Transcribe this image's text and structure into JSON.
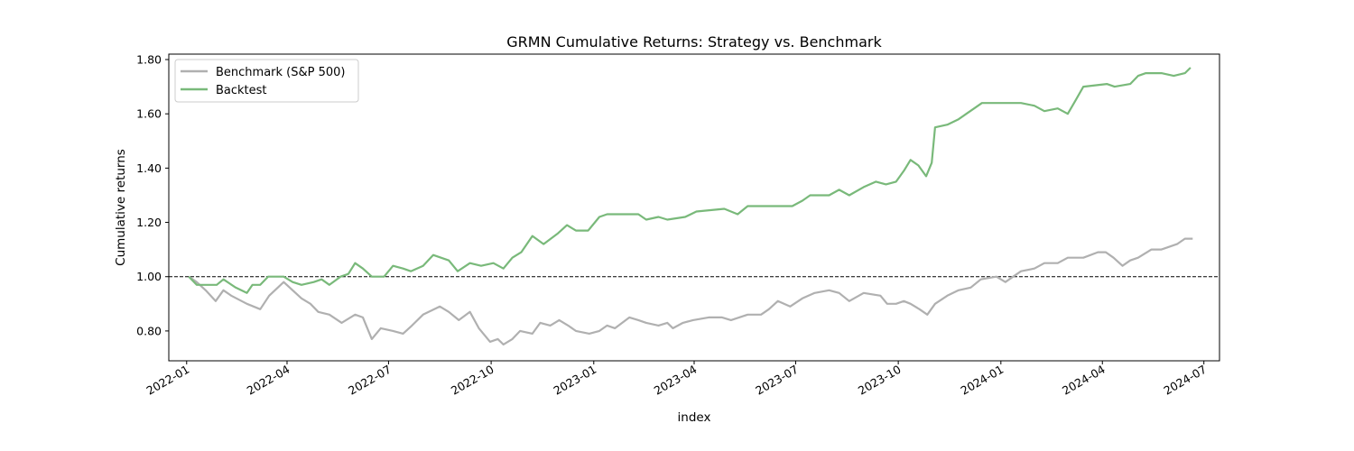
{
  "chart_data": {
    "type": "line",
    "title": "GRMN Cumulative Returns: Strategy vs. Benchmark",
    "xlabel": "index",
    "ylabel": "Cumulative returns",
    "xlim": [
      "2021-12-16",
      "2024-07-15"
    ],
    "ylim": [
      0.69,
      1.82
    ],
    "x_ticks": [
      "2022-01",
      "2022-04",
      "2022-07",
      "2022-10",
      "2023-01",
      "2023-04",
      "2023-07",
      "2023-10",
      "2024-01",
      "2024-04",
      "2024-07"
    ],
    "y_ticks": [
      0.8,
      1.0,
      1.2,
      1.4,
      1.6,
      1.8
    ],
    "y_tick_labels": [
      "0.80",
      "1.00",
      "1.20",
      "1.40",
      "1.60",
      "1.80"
    ],
    "reference_line": 1.0,
    "grid": false,
    "legend": "top-left",
    "series": [
      {
        "name": "Benchmark (S&P 500)",
        "color": "#b0b0b0",
        "points": [
          [
            "2022-01-03",
            1.0
          ],
          [
            "2022-01-10",
            0.98
          ],
          [
            "2022-01-18",
            0.95
          ],
          [
            "2022-01-27",
            0.91
          ],
          [
            "2022-02-03",
            0.95
          ],
          [
            "2022-02-10",
            0.93
          ],
          [
            "2022-02-24",
            0.9
          ],
          [
            "2022-03-08",
            0.88
          ],
          [
            "2022-03-16",
            0.93
          ],
          [
            "2022-03-29",
            0.98
          ],
          [
            "2022-04-06",
            0.95
          ],
          [
            "2022-04-14",
            0.92
          ],
          [
            "2022-04-22",
            0.9
          ],
          [
            "2022-04-29",
            0.87
          ],
          [
            "2022-05-09",
            0.86
          ],
          [
            "2022-05-20",
            0.83
          ],
          [
            "2022-06-01",
            0.86
          ],
          [
            "2022-06-08",
            0.85
          ],
          [
            "2022-06-16",
            0.77
          ],
          [
            "2022-06-24",
            0.81
          ],
          [
            "2022-07-05",
            0.8
          ],
          [
            "2022-07-14",
            0.79
          ],
          [
            "2022-07-22",
            0.82
          ],
          [
            "2022-08-01",
            0.86
          ],
          [
            "2022-08-16",
            0.89
          ],
          [
            "2022-08-24",
            0.87
          ],
          [
            "2022-09-02",
            0.84
          ],
          [
            "2022-09-12",
            0.87
          ],
          [
            "2022-09-20",
            0.81
          ],
          [
            "2022-09-30",
            0.76
          ],
          [
            "2022-10-07",
            0.77
          ],
          [
            "2022-10-12",
            0.75
          ],
          [
            "2022-10-20",
            0.77
          ],
          [
            "2022-10-27",
            0.8
          ],
          [
            "2022-11-07",
            0.79
          ],
          [
            "2022-11-14",
            0.83
          ],
          [
            "2022-11-23",
            0.82
          ],
          [
            "2022-12-01",
            0.84
          ],
          [
            "2022-12-09",
            0.82
          ],
          [
            "2022-12-16",
            0.8
          ],
          [
            "2022-12-28",
            0.79
          ],
          [
            "2023-01-06",
            0.8
          ],
          [
            "2023-01-13",
            0.82
          ],
          [
            "2023-01-20",
            0.81
          ],
          [
            "2023-02-02",
            0.85
          ],
          [
            "2023-02-10",
            0.84
          ],
          [
            "2023-02-17",
            0.83
          ],
          [
            "2023-02-28",
            0.82
          ],
          [
            "2023-03-08",
            0.83
          ],
          [
            "2023-03-13",
            0.81
          ],
          [
            "2023-03-22",
            0.83
          ],
          [
            "2023-03-31",
            0.84
          ],
          [
            "2023-04-14",
            0.85
          ],
          [
            "2023-04-26",
            0.85
          ],
          [
            "2023-05-04",
            0.84
          ],
          [
            "2023-05-19",
            0.86
          ],
          [
            "2023-05-31",
            0.86
          ],
          [
            "2023-06-07",
            0.88
          ],
          [
            "2023-06-15",
            0.91
          ],
          [
            "2023-06-26",
            0.89
          ],
          [
            "2023-07-07",
            0.92
          ],
          [
            "2023-07-18",
            0.94
          ],
          [
            "2023-07-31",
            0.95
          ],
          [
            "2023-08-09",
            0.94
          ],
          [
            "2023-08-18",
            0.91
          ],
          [
            "2023-08-31",
            0.94
          ],
          [
            "2023-09-15",
            0.93
          ],
          [
            "2023-09-21",
            0.9
          ],
          [
            "2023-09-29",
            0.9
          ],
          [
            "2023-10-06",
            0.91
          ],
          [
            "2023-10-12",
            0.9
          ],
          [
            "2023-10-20",
            0.88
          ],
          [
            "2023-10-27",
            0.86
          ],
          [
            "2023-11-03",
            0.9
          ],
          [
            "2023-11-14",
            0.93
          ],
          [
            "2023-11-24",
            0.95
          ],
          [
            "2023-12-05",
            0.96
          ],
          [
            "2023-12-14",
            0.99
          ],
          [
            "2023-12-28",
            1.0
          ],
          [
            "2024-01-05",
            0.98
          ],
          [
            "2024-01-12",
            1.0
          ],
          [
            "2024-01-19",
            1.02
          ],
          [
            "2024-01-31",
            1.03
          ],
          [
            "2024-02-09",
            1.05
          ],
          [
            "2024-02-21",
            1.05
          ],
          [
            "2024-03-01",
            1.07
          ],
          [
            "2024-03-15",
            1.07
          ],
          [
            "2024-03-28",
            1.09
          ],
          [
            "2024-04-04",
            1.09
          ],
          [
            "2024-04-11",
            1.07
          ],
          [
            "2024-04-19",
            1.04
          ],
          [
            "2024-04-26",
            1.06
          ],
          [
            "2024-05-03",
            1.07
          ],
          [
            "2024-05-15",
            1.1
          ],
          [
            "2024-05-24",
            1.1
          ],
          [
            "2024-05-31",
            1.11
          ],
          [
            "2024-06-07",
            1.12
          ],
          [
            "2024-06-14",
            1.14
          ],
          [
            "2024-06-21",
            1.14
          ]
        ]
      },
      {
        "name": "Backtest",
        "color": "#79b97a",
        "points": [
          [
            "2022-01-03",
            1.0
          ],
          [
            "2022-01-10",
            0.97
          ],
          [
            "2022-01-20",
            0.97
          ],
          [
            "2022-01-28",
            0.97
          ],
          [
            "2022-02-03",
            0.99
          ],
          [
            "2022-02-14",
            0.96
          ],
          [
            "2022-02-24",
            0.94
          ],
          [
            "2022-03-01",
            0.97
          ],
          [
            "2022-03-08",
            0.97
          ],
          [
            "2022-03-15",
            1.0
          ],
          [
            "2022-03-29",
            1.0
          ],
          [
            "2022-04-06",
            0.98
          ],
          [
            "2022-04-14",
            0.97
          ],
          [
            "2022-04-25",
            0.98
          ],
          [
            "2022-05-02",
            0.99
          ],
          [
            "2022-05-09",
            0.97
          ],
          [
            "2022-05-19",
            1.0
          ],
          [
            "2022-05-26",
            1.01
          ],
          [
            "2022-06-01",
            1.05
          ],
          [
            "2022-06-08",
            1.03
          ],
          [
            "2022-06-16",
            1.0
          ],
          [
            "2022-06-27",
            1.0
          ],
          [
            "2022-07-05",
            1.04
          ],
          [
            "2022-07-14",
            1.03
          ],
          [
            "2022-07-21",
            1.02
          ],
          [
            "2022-08-01",
            1.04
          ],
          [
            "2022-08-10",
            1.08
          ],
          [
            "2022-08-24",
            1.06
          ],
          [
            "2022-09-01",
            1.02
          ],
          [
            "2022-09-12",
            1.05
          ],
          [
            "2022-09-22",
            1.04
          ],
          [
            "2022-10-03",
            1.05
          ],
          [
            "2022-10-12",
            1.03
          ],
          [
            "2022-10-20",
            1.07
          ],
          [
            "2022-10-28",
            1.09
          ],
          [
            "2022-11-07",
            1.15
          ],
          [
            "2022-11-17",
            1.12
          ],
          [
            "2022-11-30",
            1.16
          ],
          [
            "2022-12-08",
            1.19
          ],
          [
            "2022-12-16",
            1.17
          ],
          [
            "2022-12-27",
            1.17
          ],
          [
            "2023-01-06",
            1.22
          ],
          [
            "2023-01-13",
            1.23
          ],
          [
            "2023-01-31",
            1.23
          ],
          [
            "2023-02-10",
            1.23
          ],
          [
            "2023-02-17",
            1.21
          ],
          [
            "2023-02-28",
            1.22
          ],
          [
            "2023-03-08",
            1.21
          ],
          [
            "2023-03-24",
            1.22
          ],
          [
            "2023-04-03",
            1.24
          ],
          [
            "2023-04-28",
            1.25
          ],
          [
            "2023-05-10",
            1.23
          ],
          [
            "2023-05-19",
            1.26
          ],
          [
            "2023-06-09",
            1.26
          ],
          [
            "2023-06-28",
            1.26
          ],
          [
            "2023-07-07",
            1.28
          ],
          [
            "2023-07-14",
            1.3
          ],
          [
            "2023-07-31",
            1.3
          ],
          [
            "2023-08-09",
            1.32
          ],
          [
            "2023-08-18",
            1.3
          ],
          [
            "2023-08-31",
            1.33
          ],
          [
            "2023-09-11",
            1.35
          ],
          [
            "2023-09-20",
            1.34
          ],
          [
            "2023-09-29",
            1.35
          ],
          [
            "2023-10-06",
            1.39
          ],
          [
            "2023-10-12",
            1.43
          ],
          [
            "2023-10-19",
            1.41
          ],
          [
            "2023-10-26",
            1.37
          ],
          [
            "2023-10-31",
            1.42
          ],
          [
            "2023-11-03",
            1.55
          ],
          [
            "2023-11-14",
            1.56
          ],
          [
            "2023-11-24",
            1.58
          ],
          [
            "2023-12-01",
            1.6
          ],
          [
            "2023-12-08",
            1.62
          ],
          [
            "2023-12-15",
            1.64
          ],
          [
            "2024-01-05",
            1.64
          ],
          [
            "2024-01-19",
            1.64
          ],
          [
            "2024-01-31",
            1.63
          ],
          [
            "2024-02-09",
            1.61
          ],
          [
            "2024-02-21",
            1.62
          ],
          [
            "2024-03-01",
            1.6
          ],
          [
            "2024-03-08",
            1.65
          ],
          [
            "2024-03-15",
            1.7
          ],
          [
            "2024-04-05",
            1.71
          ],
          [
            "2024-04-12",
            1.7
          ],
          [
            "2024-04-26",
            1.71
          ],
          [
            "2024-05-03",
            1.74
          ],
          [
            "2024-05-10",
            1.75
          ],
          [
            "2024-05-24",
            1.75
          ],
          [
            "2024-06-04",
            1.74
          ],
          [
            "2024-06-14",
            1.75
          ],
          [
            "2024-06-19",
            1.77
          ]
        ]
      }
    ]
  }
}
